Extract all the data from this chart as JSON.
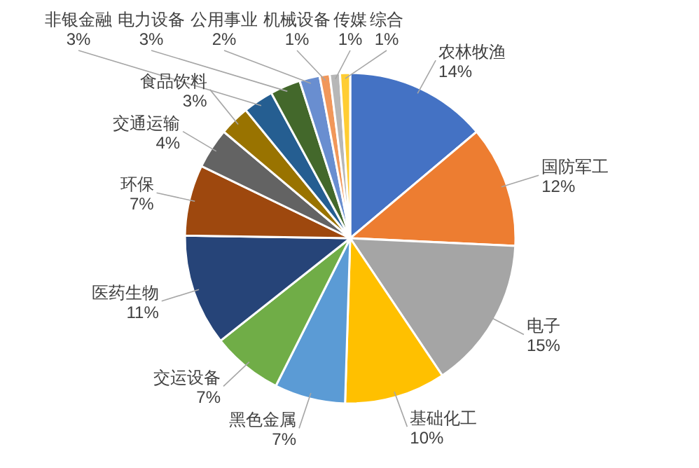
{
  "chart_data": {
    "type": "pie",
    "categories": [
      "农林牧渔",
      "国防军工",
      "电子",
      "基础化工",
      "黑色金属",
      "交运设备",
      "医药生物",
      "环保",
      "交通运输",
      "食品饮料",
      "非银金融",
      "电力设备",
      "公用事业",
      "机械设备",
      "传媒",
      "综合"
    ],
    "values": [
      14,
      12,
      15,
      10,
      7,
      7,
      11,
      7,
      4,
      3,
      3,
      3,
      2,
      1,
      1,
      1
    ],
    "colors": [
      "#4472c4",
      "#ed7d31",
      "#a5a5a5",
      "#ffc000",
      "#5b9bd5",
      "#70ad47",
      "#264478",
      "#9e480e",
      "#636363",
      "#997300",
      "#255e91",
      "#43682b",
      "#698ed0",
      "#f1975a",
      "#b7b7b7",
      "#ffcd33"
    ],
    "value_labels": [
      "14%",
      "12%",
      "15%",
      "10%",
      "7%",
      "7%",
      "11%",
      "7%",
      "4%",
      "3%",
      "3%",
      "3%",
      "2%",
      "1%",
      "1%",
      "1%"
    ]
  }
}
